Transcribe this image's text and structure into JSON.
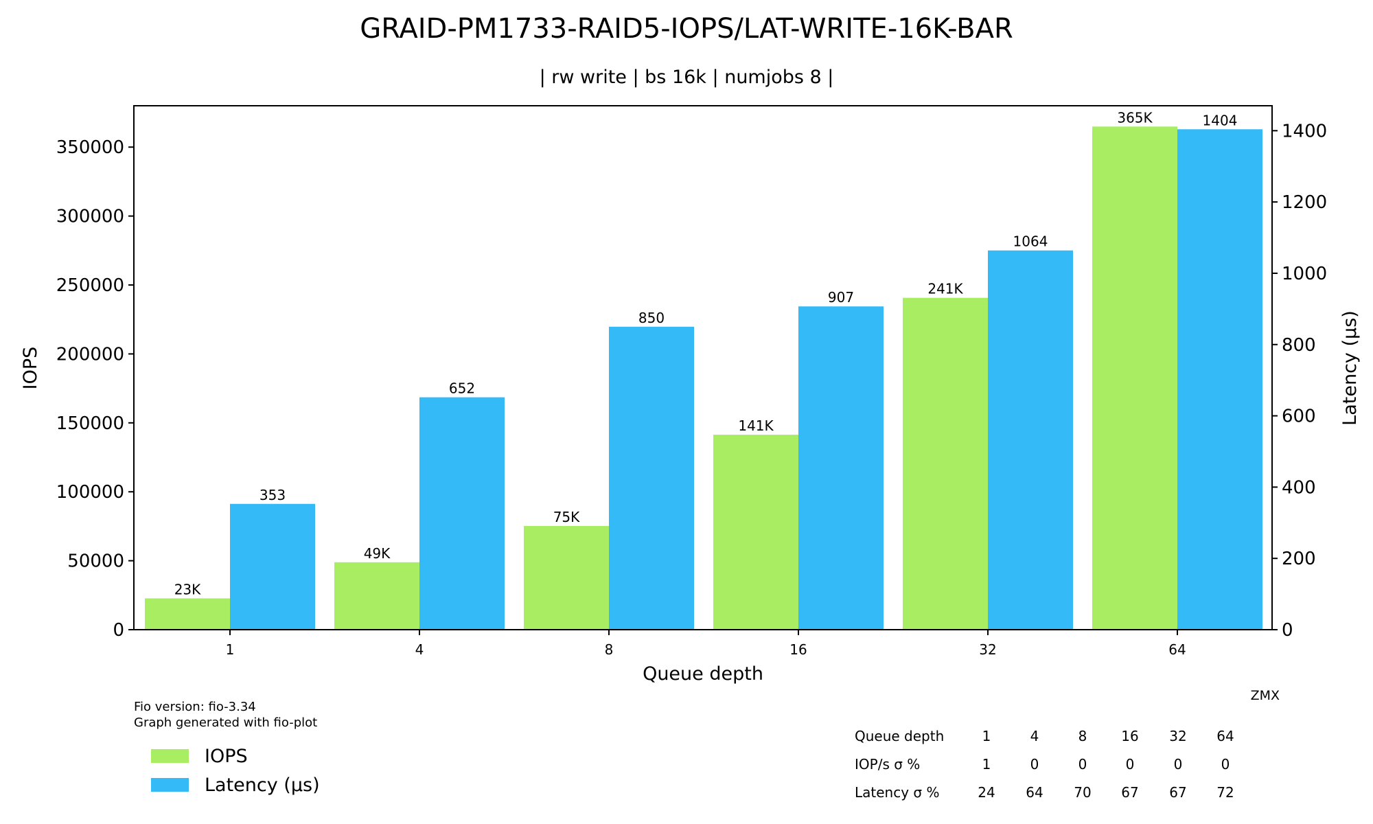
{
  "chart_data": {
    "type": "bar",
    "title": "GRAID-PM1733-RAID5-IOPS/LAT-WRITE-16K-BAR",
    "subtitle": "| rw write | bs 16k | numjobs 8 |",
    "xlabel": "Queue depth",
    "ylabel": "IOPS",
    "y2label": "Latency (µs)",
    "categories": [
      "1",
      "4",
      "8",
      "16",
      "32",
      "64"
    ],
    "ylim": [
      0,
      380000
    ],
    "y2lim": [
      0,
      1470
    ],
    "yticks": [
      0,
      50000,
      100000,
      150000,
      200000,
      250000,
      300000,
      350000
    ],
    "y2ticks": [
      0,
      200,
      400,
      600,
      800,
      1000,
      1200,
      1400
    ],
    "grid": false,
    "legend_position": "bottom-left",
    "series": [
      {
        "name": "IOPS",
        "axis": "left",
        "color": "#a9ed63",
        "values": [
          22700,
          48900,
          75200,
          141400,
          240700,
          364900
        ],
        "labels": [
          "23K",
          "49K",
          "75K",
          "141K",
          "241K",
          "365K"
        ]
      },
      {
        "name": "Latency (µs)",
        "axis": "right",
        "color": "#35baf8",
        "values": [
          353,
          652,
          850,
          907,
          1064,
          1404
        ],
        "labels": [
          "353",
          "652",
          "850",
          "907",
          "1064",
          "1404"
        ]
      }
    ]
  },
  "footer": {
    "fio_version": "Fio version: fio-3.34",
    "generated_with": "Graph generated with fio-plot",
    "watermark": "ZMX"
  },
  "stats_table": {
    "rows": [
      {
        "label": "Queue depth",
        "values": [
          "1",
          "4",
          "8",
          "16",
          "32",
          "64"
        ]
      },
      {
        "label": "IOP/s σ %",
        "values": [
          "1",
          "0",
          "0",
          "0",
          "0",
          "0"
        ]
      },
      {
        "label": "Latency σ %",
        "values": [
          "24",
          "64",
          "70",
          "67",
          "67",
          "72"
        ]
      }
    ]
  }
}
